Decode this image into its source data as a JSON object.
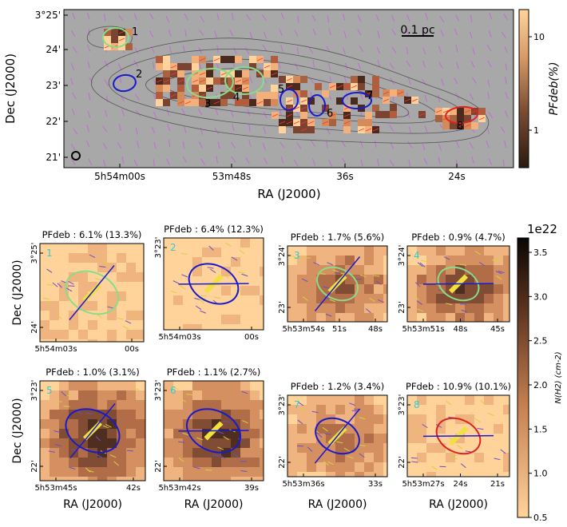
{
  "top_panel": {
    "xlabel": "RA (J2000)",
    "ylabel": "Dec (J2000)",
    "y_ticks": [
      "3°25'",
      "24'",
      "23'",
      "22'",
      "21'"
    ],
    "x_ticks": [
      "5h54m00s",
      "53m48s",
      "36s",
      "24s"
    ],
    "scalebar_label": "0.1 pc",
    "colorbar_label": "PFdeb(%)",
    "colorbar_ticks": [
      "10",
      "1"
    ],
    "cores": [
      {
        "id": "1",
        "color": "#88dd88"
      },
      {
        "id": "2",
        "color": "#1a1acc"
      },
      {
        "id": "3",
        "color": "#88dd88"
      },
      {
        "id": "4",
        "color": "#88dd88"
      },
      {
        "id": "5",
        "color": "#1a1acc"
      },
      {
        "id": "6",
        "color": "#1a1acc"
      },
      {
        "id": "7",
        "color": "#1a1acc"
      },
      {
        "id": "8",
        "color": "#dd2222"
      }
    ]
  },
  "small_panels": [
    {
      "id": "1",
      "title": "PFdeb : 6.1% (13.3%)",
      "ell": "#88dd88",
      "yticks": [
        "3°25'",
        "24'"
      ],
      "xticks": [
        "5h54m03s",
        "00s"
      ],
      "dec_label": "Dec (J2000)",
      "ra_label": ""
    },
    {
      "id": "2",
      "title": "PFdeb : 6.4% (12.3%)",
      "ell": "#1a1acc",
      "yticks": [
        "3°23'"
      ],
      "xticks": [
        "5h54m03s",
        "00s"
      ],
      "dec_label": "",
      "ra_label": ""
    },
    {
      "id": "3",
      "title": "PFdeb : 1.7% (5.6%)",
      "ell": "#88dd88",
      "yticks": [
        "3°24'",
        "23'"
      ],
      "xticks": [
        "5h53m54s",
        "51s",
        "48s"
      ],
      "dec_label": "",
      "ra_label": ""
    },
    {
      "id": "4",
      "title": "PFdeb : 0.9% (4.7%)",
      "ell": "#88dd88",
      "yticks": [
        "3°24'",
        "23'"
      ],
      "xticks": [
        "5h53m51s",
        "48s",
        "45s"
      ],
      "dec_label": "",
      "ra_label": ""
    },
    {
      "id": "5",
      "title": "PFdeb : 1.0% (3.1%)",
      "ell": "#1a1acc",
      "yticks": [
        "3°23'",
        "22'"
      ],
      "xticks": [
        "5h53m45s",
        "42s"
      ],
      "dec_label": "Dec (J2000)",
      "ra_label": "RA (J2000)"
    },
    {
      "id": "6",
      "title": "PFdeb : 1.1% (2.7%)",
      "ell": "#1a1acc",
      "yticks": [
        "3°23'",
        "22'"
      ],
      "xticks": [
        "5h53m42s",
        "39s"
      ],
      "dec_label": "",
      "ra_label": "RA (J2000)"
    },
    {
      "id": "7",
      "title": "PFdeb : 1.2% (3.4%)",
      "ell": "#1a1acc",
      "yticks": [
        "3°23'",
        "22'"
      ],
      "xticks": [
        "5h53m36s",
        "33s"
      ],
      "dec_label": "",
      "ra_label": "RA (J2000)"
    },
    {
      "id": "8",
      "title": "PFdeb : 10.9% (10.1%)",
      "ell": "#dd2222",
      "yticks": [
        "3°23'",
        "22'"
      ],
      "xticks": [
        "5h53m27s",
        "24s",
        "21s"
      ],
      "dec_label": "",
      "ra_label": "RA (J2000)"
    }
  ],
  "colorbar2": {
    "exponent": "1e22",
    "label": "N(H2) (cm-2)",
    "ticks": [
      "3.5",
      "3.0",
      "2.5",
      "2.0",
      "1.5",
      "1.0",
      "0.5"
    ]
  }
}
